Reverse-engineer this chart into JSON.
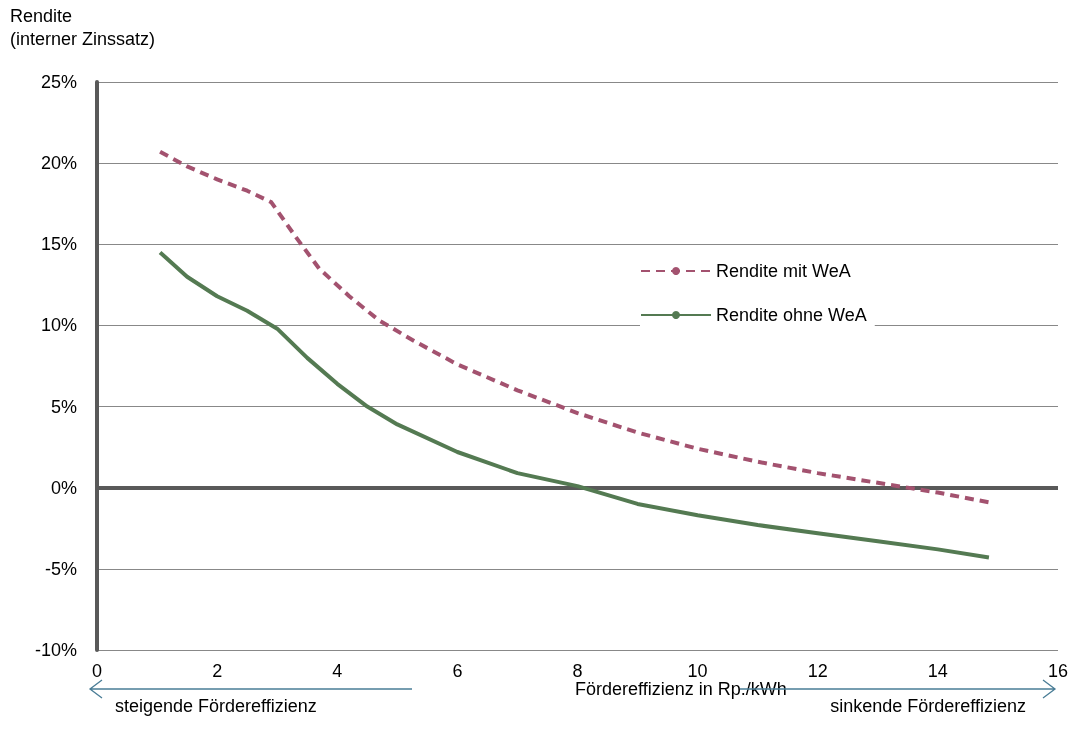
{
  "chart_data": {
    "type": "line",
    "ylabel": "Rendite\n(interner Zinssatz)",
    "xlabel": "Fördereffizienz in Rp./kWh",
    "annotations": [
      "steigende Fördereffizienz",
      "sinkende Fördereffizienz"
    ],
    "series": [
      {
        "name": "Rendite mit WeA",
        "color": "#a3526f",
        "line_style": "dashed",
        "x": [
          1.05,
          1.5,
          2.0,
          2.5,
          2.9,
          3.3,
          3.7,
          4.2,
          4.7,
          5.3,
          6,
          7,
          8,
          9,
          10,
          11,
          12,
          13,
          14,
          14.85
        ],
        "values": [
          20.7,
          19.8,
          19.0,
          18.3,
          17.6,
          15.5,
          13.5,
          11.8,
          10.3,
          9.0,
          7.6,
          6.0,
          4.6,
          3.4,
          2.4,
          1.6,
          0.9,
          0.3,
          -0.3,
          -0.9
        ]
      },
      {
        "name": "Rendite ohne WeA",
        "color": "#547a52",
        "line_style": "solid",
        "x": [
          1.05,
          1.5,
          2.0,
          2.5,
          3.0,
          3.5,
          4,
          4.5,
          5,
          6,
          7,
          8,
          9,
          10,
          11,
          12,
          13,
          14,
          14.85
        ],
        "values": [
          14.5,
          13.0,
          11.8,
          10.9,
          9.8,
          8.0,
          6.4,
          5.0,
          3.9,
          2.2,
          0.9,
          0.1,
          -1.0,
          -1.7,
          -2.3,
          -2.8,
          -3.3,
          -3.8,
          -4.3
        ]
      }
    ],
    "xlim": [
      0,
      16
    ],
    "xticks": [
      0,
      2,
      4,
      6,
      8,
      10,
      12,
      14,
      16
    ],
    "ylim": [
      -10,
      25
    ],
    "yticks": [
      {
        "value": -10,
        "label": "-10%"
      },
      {
        "value": -5,
        "label": "-5%"
      },
      {
        "value": 0,
        "label": "0%"
      },
      {
        "value": 5,
        "label": "5%"
      },
      {
        "value": 10,
        "label": "10%"
      },
      {
        "value": 15,
        "label": "15%"
      },
      {
        "value": 20,
        "label": "20%"
      },
      {
        "value": 25,
        "label": "25%"
      }
    ],
    "ref_lines": [
      {
        "axis": "y",
        "value": 0,
        "color": "#595959"
      }
    ],
    "grid": "y",
    "legend": "right",
    "marker": "none"
  }
}
